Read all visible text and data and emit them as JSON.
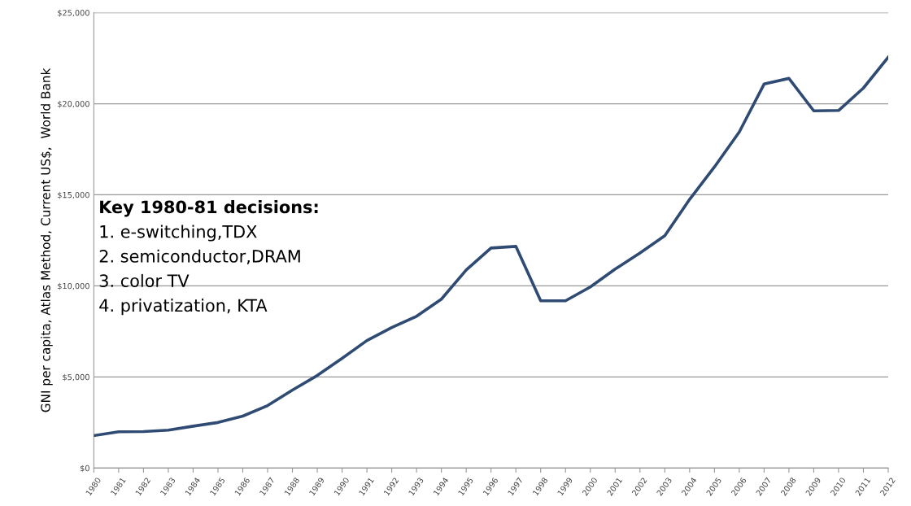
{
  "chart_data": {
    "type": "line",
    "ylabel": "GNI per capita, Atlas Method, Current US$,  World Bank",
    "categories": [
      "1980",
      "1981",
      "1982",
      "1983",
      "1984",
      "1985",
      "1986",
      "1987",
      "1988",
      "1989",
      "1990",
      "1991",
      "1992",
      "1993",
      "1994",
      "1995",
      "1996",
      "1997",
      "1998",
      "1999",
      "2000",
      "2001",
      "2002",
      "2003",
      "2004",
      "2005",
      "2006",
      "2007",
      "2008",
      "2009",
      "2010",
      "2011",
      "2012"
    ],
    "series": [
      {
        "color": "#2f4b73",
        "values": [
          1780,
          1990,
          2000,
          2080,
          2300,
          2500,
          2850,
          3430,
          4280,
          5080,
          6020,
          7000,
          7710,
          8330,
          9270,
          10870,
          12080,
          12170,
          9180,
          9180,
          9940,
          10920,
          11810,
          12750,
          14750,
          16530,
          18450,
          21080,
          21390,
          19610,
          19630,
          20860,
          22550
        ]
      }
    ],
    "ylim": [
      0,
      25000
    ],
    "yticks": [
      {
        "value": 0,
        "label": "$0"
      },
      {
        "value": 5000,
        "label": "$5,000"
      },
      {
        "value": 10000,
        "label": "$10,000"
      },
      {
        "value": 15000,
        "label": "$15,000"
      },
      {
        "value": 20000,
        "label": "$20,000"
      },
      {
        "value": 25000,
        "label": "$25,000"
      }
    ],
    "grid": "y",
    "marker": "none",
    "line_style": "solid",
    "annotations": [
      "Key 1980-81 decisions:",
      "1. e-switching,TDX",
      "2. semiconductor,DRAM",
      "3. color TV",
      "4. privatization, KTA"
    ]
  }
}
